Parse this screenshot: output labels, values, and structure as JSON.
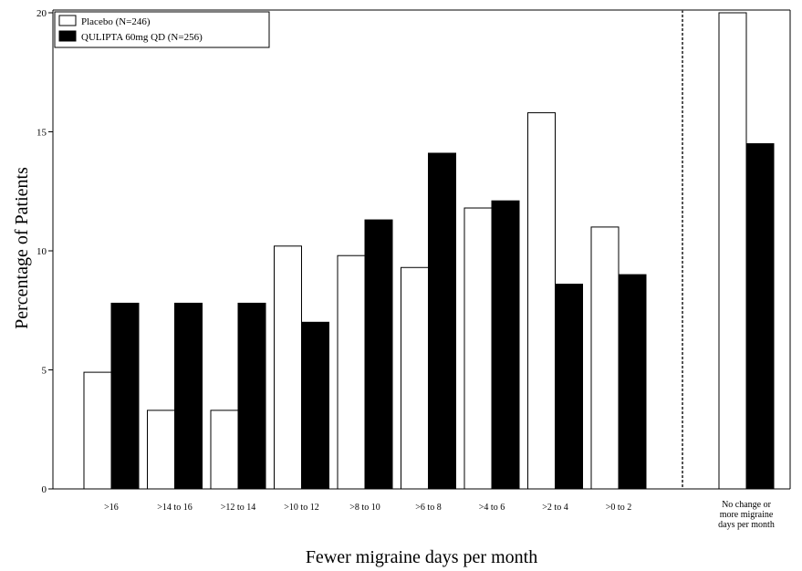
{
  "chart_data": {
    "type": "bar",
    "title": "",
    "xlabel": "Fewer migraine days per month",
    "ylabel": "Percentage of Patients",
    "ylim": [
      0,
      20
    ],
    "yticks": [
      "0",
      "5",
      "10",
      "15",
      "20"
    ],
    "categories": [
      ">16",
      ">14 to 16",
      ">12 to 14",
      ">10 to 12",
      ">8 to 10",
      ">6 to 8",
      ">4 to 6",
      ">2 to 4",
      ">0 to 2"
    ],
    "separate_category": [
      "No change or",
      "more migraine",
      "days per month"
    ],
    "series": [
      {
        "name": "Placebo (N=246)",
        "fill": "#ffffff",
        "values": [
          4.9,
          3.3,
          3.3,
          10.2,
          9.8,
          9.3,
          11.8,
          15.8,
          11.0
        ],
        "separate_value": 20.0
      },
      {
        "name": "QULIPTA 60mg QD (N=256)",
        "fill": "#000000",
        "values": [
          7.8,
          7.8,
          7.8,
          7.0,
          11.3,
          14.1,
          12.1,
          8.6,
          9.0
        ],
        "separate_value": 14.5
      }
    ],
    "legend_position": "top-left",
    "grid": false,
    "divider_line": "dashed vertical line before the last category"
  }
}
